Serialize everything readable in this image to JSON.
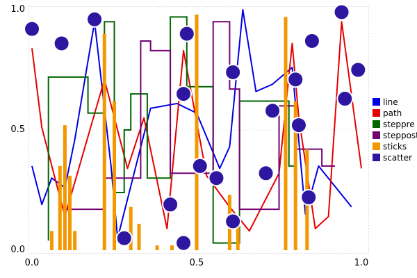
{
  "chart_data": {
    "type": "mixed",
    "title": "",
    "xlabel": "",
    "ylabel": "",
    "xlim": [
      0,
      1
    ],
    "ylim": [
      0,
      1
    ],
    "grid": "dotted-border",
    "legend_position": "right",
    "xticks": {
      "values": [
        0,
        0.5,
        1
      ],
      "labels": [
        "0.0",
        "0.5",
        "1.0"
      ]
    },
    "yticks": {
      "values": [
        0,
        0.5,
        1
      ],
      "labels": [
        "1.0",
        "0.5",
        "0.0"
      ]
    },
    "series": [
      {
        "name": "line",
        "type": "line",
        "color": "#0000e6",
        "x": [
          0.0,
          0.03,
          0.06,
          0.1,
          0.13,
          0.19,
          0.24,
          0.26,
          0.36,
          0.44,
          0.5,
          0.57,
          0.6,
          0.64,
          0.68,
          0.73,
          0.79,
          0.83,
          0.87,
          0.97
        ],
        "y": [
          0.35,
          0.19,
          0.3,
          0.26,
          0.46,
          0.95,
          0.35,
          0.05,
          0.59,
          0.61,
          0.57,
          0.34,
          0.43,
          1.0,
          0.66,
          0.69,
          0.76,
          0.15,
          0.35,
          0.18
        ]
      },
      {
        "name": "path",
        "type": "path",
        "color": "#e60000",
        "x": [
          0.0,
          0.03,
          0.1,
          0.22,
          0.29,
          0.34,
          0.41,
          0.46,
          0.53,
          0.6,
          0.66,
          0.75,
          0.79,
          0.81,
          0.86,
          0.9,
          0.94,
          1.0
        ],
        "y": [
          0.84,
          0.51,
          0.14,
          0.71,
          0.34,
          0.55,
          0.09,
          0.83,
          0.31,
          0.18,
          0.08,
          0.32,
          0.86,
          0.55,
          0.09,
          0.14,
          0.95,
          0.34
        ]
      },
      {
        "name": "steppre",
        "type": "steppre",
        "color": "#006600",
        "x": [
          0.05,
          0.17,
          0.22,
          0.25,
          0.28,
          0.3,
          0.35,
          0.42,
          0.47,
          0.55,
          0.63,
          0.66,
          0.78,
          0.8
        ],
        "y": [
          0.04,
          0.72,
          0.57,
          0.95,
          0.24,
          0.5,
          0.65,
          0.3,
          0.97,
          0.68,
          0.03,
          0.62,
          0.62,
          0.35
        ]
      },
      {
        "name": "steppost",
        "type": "steppost",
        "color": "#730073",
        "x": [
          0.1,
          0.22,
          0.33,
          0.36,
          0.42,
          0.5,
          0.55,
          0.6,
          0.63,
          0.75,
          0.8,
          0.88,
          0.92
        ],
        "y": [
          0.17,
          0.3,
          0.87,
          0.83,
          0.32,
          0.32,
          0.95,
          0.67,
          0.17,
          0.6,
          0.42,
          0.35,
          0.35
        ]
      },
      {
        "name": "sticks",
        "type": "sticks",
        "color": "#f39800",
        "x": [
          0.06,
          0.085,
          0.1,
          0.115,
          0.13,
          0.22,
          0.25,
          0.3,
          0.325,
          0.38,
          0.425,
          0.5,
          0.6,
          0.625,
          0.77,
          0.8,
          0.835
        ],
        "y": [
          0.08,
          0.35,
          0.52,
          0.31,
          0.08,
          0.9,
          0.62,
          0.18,
          0.11,
          0.02,
          0.02,
          0.98,
          0.23,
          0.1,
          0.97,
          0.62,
          0.42
        ]
      },
      {
        "name": "scatter",
        "type": "scatter",
        "color": "#2e16a0",
        "marker_stroke": "#ffffff",
        "x": [
          0.0,
          0.09,
          0.19,
          0.28,
          0.42,
          0.46,
          0.47,
          0.46,
          0.51,
          0.56,
          0.61,
          0.61,
          0.71,
          0.73,
          0.8,
          0.81,
          0.84,
          0.85,
          0.94,
          0.95,
          0.99
        ],
        "y": [
          0.92,
          0.86,
          0.96,
          0.05,
          0.19,
          0.65,
          0.9,
          0.03,
          0.35,
          0.3,
          0.74,
          0.12,
          0.32,
          0.58,
          0.71,
          0.52,
          0.22,
          0.87,
          0.99,
          0.63,
          0.75
        ]
      }
    ]
  }
}
